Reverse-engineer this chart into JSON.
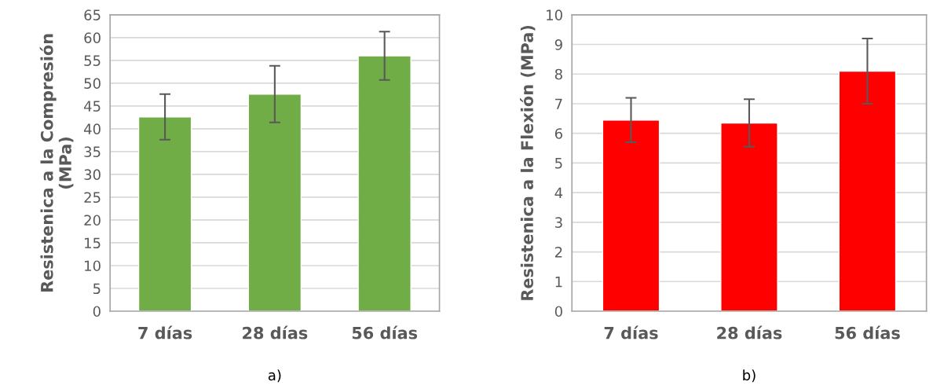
{
  "chart_data": [
    {
      "type": "bar",
      "ylabel": "Resistenica a la Compresión\n(MPa)",
      "categories": [
        "7 días",
        "28 días",
        "56 días"
      ],
      "values": [
        42.6,
        47.6,
        56.0
      ],
      "errors": [
        5.0,
        6.2,
        5.3
      ],
      "color": "#70ad47",
      "ylim": [
        0,
        65
      ],
      "yticks": [
        0,
        5,
        10,
        15,
        20,
        25,
        30,
        35,
        40,
        45,
        50,
        55,
        60,
        65
      ],
      "grid": "y",
      "annotations": [
        "a)"
      ]
    },
    {
      "type": "bar",
      "ylabel": "Resistenica a la Flexión (MPa)",
      "categories": [
        "7 días",
        "28 días",
        "56 días"
      ],
      "values": [
        6.45,
        6.35,
        8.1
      ],
      "errors": [
        0.75,
        0.8,
        1.1
      ],
      "color": "#ff0000",
      "ylim": [
        0,
        10
      ],
      "yticks": [
        0,
        1,
        2,
        3,
        4,
        5,
        6,
        7,
        8,
        9,
        10
      ],
      "grid": "y",
      "annotations": [
        "b)"
      ]
    }
  ]
}
